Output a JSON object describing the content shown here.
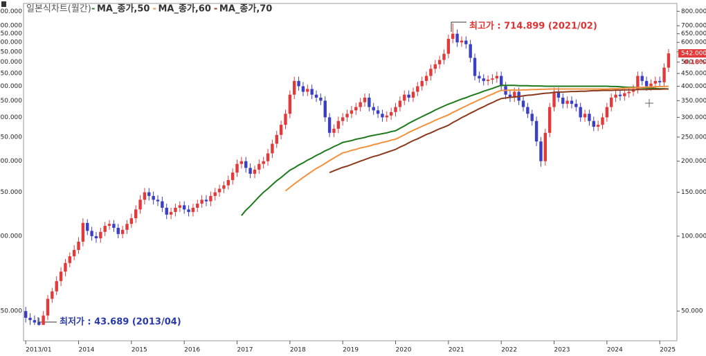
{
  "chart_data": {
    "type": "candlestick",
    "title": "일본식차트(월간)",
    "log_scale": true,
    "ylim": [
      38,
      860
    ],
    "yticks": [
      {
        "value": 800,
        "label": "800.000"
      },
      {
        "value": 700,
        "label": "700.000"
      },
      {
        "value": 650,
        "label": "650.000"
      },
      {
        "value": 600,
        "label": "600.000"
      },
      {
        "value": 550,
        "label": "550.000"
      },
      {
        "value": 500,
        "label": "500.000"
      },
      {
        "value": 450,
        "label": "450.000"
      },
      {
        "value": 400,
        "label": "400.000"
      },
      {
        "value": 350,
        "label": "350.000"
      },
      {
        "value": 300,
        "label": "300.000"
      },
      {
        "value": 250,
        "label": "250.000"
      },
      {
        "value": 200,
        "label": "200.000"
      },
      {
        "value": 150,
        "label": "150.000"
      },
      {
        "value": 100,
        "label": "100.000"
      },
      {
        "value": 50,
        "label": "50.000"
      }
    ],
    "up_color": "#e23a3a",
    "down_color": "#3a3fc4",
    "categories": [
      "2013/01",
      null,
      null,
      null,
      null,
      null,
      null,
      null,
      null,
      null,
      null,
      null,
      "2014",
      null,
      null,
      null,
      null,
      null,
      null,
      null,
      null,
      null,
      null,
      null,
      "2015",
      null,
      null,
      null,
      null,
      null,
      null,
      null,
      null,
      null,
      null,
      null,
      "2016",
      null,
      null,
      null,
      null,
      null,
      null,
      null,
      null,
      null,
      null,
      null,
      "2017",
      null,
      null,
      null,
      null,
      null,
      null,
      null,
      null,
      null,
      null,
      null,
      "2018",
      null,
      null,
      null,
      null,
      null,
      null,
      null,
      null,
      null,
      null,
      null,
      "2019",
      null,
      null,
      null,
      null,
      null,
      null,
      null,
      null,
      null,
      null,
      null,
      "2020",
      null,
      null,
      null,
      null,
      null,
      null,
      null,
      null,
      null,
      null,
      null,
      "2021",
      null,
      null,
      null,
      null,
      null,
      null,
      null,
      null,
      null,
      null,
      null,
      "2022",
      null,
      null,
      null,
      null,
      null,
      null,
      null,
      null,
      null,
      null,
      null,
      "2023",
      null,
      null,
      null,
      null,
      null,
      null,
      null,
      null,
      null,
      null,
      null,
      "2024",
      null,
      null,
      null,
      null,
      null,
      null,
      null,
      null,
      null,
      null,
      null,
      "2025",
      null,
      null
    ],
    "open": [
      50,
      47,
      46,
      45,
      44,
      48,
      56,
      60,
      66,
      72,
      78,
      83,
      88,
      95,
      113,
      105,
      100,
      98,
      104,
      110,
      112,
      108,
      102,
      106,
      112,
      118,
      128,
      140,
      150,
      145,
      140,
      138,
      130,
      122,
      125,
      130,
      133,
      128,
      125,
      130,
      135,
      140,
      138,
      145,
      150,
      155,
      160,
      168,
      180,
      195,
      200,
      188,
      178,
      185,
      195,
      200,
      215,
      235,
      255,
      280,
      310,
      370,
      420,
      400,
      380,
      390,
      370,
      360,
      350,
      300,
      260,
      270,
      290,
      300,
      310,
      320,
      330,
      345,
      360,
      330,
      320,
      310,
      300,
      305,
      315,
      330,
      350,
      370,
      360,
      380,
      400,
      420,
      440,
      470,
      490,
      510,
      540,
      620,
      650,
      600,
      610,
      590,
      520,
      440,
      430,
      420,
      425,
      430,
      440,
      400,
      370,
      360,
      380,
      350,
      330,
      310,
      290,
      240,
      200,
      260,
      330,
      380,
      360,
      340,
      350,
      340,
      330,
      300,
      310,
      290,
      275,
      280,
      300,
      330,
      360,
      370,
      365,
      375,
      380,
      390,
      440,
      420,
      400,
      410,
      420,
      415,
      475
    ],
    "high": [
      52,
      49,
      48,
      47,
      50,
      58,
      62,
      69,
      75,
      81,
      86,
      92,
      99,
      118,
      117,
      109,
      104,
      108,
      114,
      116,
      116,
      112,
      110,
      116,
      123,
      133,
      146,
      156,
      156,
      151,
      146,
      144,
      135,
      130,
      135,
      138,
      138,
      133,
      135,
      140,
      146,
      146,
      151,
      156,
      161,
      166,
      175,
      187,
      203,
      208,
      208,
      196,
      192,
      203,
      208,
      224,
      244,
      265,
      291,
      322,
      385,
      437,
      437,
      416,
      406,
      406,
      385,
      374,
      364,
      312,
      281,
      302,
      312,
      322,
      333,
      343,
      359,
      374,
      374,
      343,
      333,
      322,
      317,
      328,
      343,
      364,
      385,
      385,
      395,
      416,
      437,
      458,
      489,
      510,
      530,
      562,
      645,
      714.899,
      676,
      634,
      634,
      614,
      541,
      458,
      447,
      442,
      447,
      458,
      458,
      416,
      385,
      395,
      395,
      364,
      343,
      322,
      302,
      250,
      270,
      343,
      395,
      395,
      374,
      364,
      364,
      354,
      343,
      322,
      322,
      302,
      291,
      312,
      343,
      374,
      385,
      385,
      390,
      395,
      406,
      458,
      458,
      437,
      426,
      437,
      437,
      494,
      564
    ],
    "low": [
      45,
      44,
      44,
      43.689,
      44,
      46,
      54,
      58,
      63,
      69,
      75,
      80,
      85,
      91,
      101,
      96,
      94,
      94,
      100,
      106,
      104,
      98,
      98,
      102,
      108,
      113,
      123,
      134,
      139,
      134,
      132,
      125,
      117,
      117,
      120,
      125,
      123,
      120,
      120,
      125,
      130,
      132,
      132,
      139,
      144,
      149,
      154,
      161,
      173,
      187,
      180,
      171,
      171,
      178,
      187,
      192,
      206,
      226,
      245,
      269,
      298,
      355,
      384,
      365,
      365,
      355,
      346,
      336,
      288,
      250,
      250,
      259,
      278,
      288,
      298,
      307,
      317,
      331,
      317,
      307,
      298,
      288,
      288,
      293,
      302,
      317,
      336,
      346,
      346,
      365,
      384,
      403,
      422,
      451,
      470,
      490,
      518,
      595,
      576,
      576,
      566,
      499,
      422,
      413,
      403,
      403,
      408,
      413,
      384,
      355,
      346,
      346,
      336,
      317,
      298,
      278,
      230,
      190,
      192,
      250,
      317,
      346,
      326,
      326,
      326,
      317,
      288,
      288,
      278,
      264,
      264,
      269,
      288,
      317,
      346,
      350,
      350,
      360,
      365,
      374,
      403,
      384,
      384,
      394,
      398,
      398,
      456
    ],
    "close": [
      47,
      46,
      45,
      44,
      48,
      56,
      60,
      66,
      72,
      78,
      83,
      88,
      95,
      113,
      105,
      100,
      98,
      104,
      110,
      112,
      108,
      102,
      106,
      112,
      118,
      128,
      140,
      150,
      145,
      140,
      138,
      130,
      122,
      125,
      130,
      133,
      128,
      125,
      130,
      135,
      140,
      138,
      145,
      150,
      155,
      160,
      168,
      180,
      195,
      200,
      188,
      178,
      185,
      195,
      200,
      215,
      235,
      255,
      280,
      310,
      370,
      420,
      400,
      380,
      390,
      370,
      360,
      350,
      300,
      260,
      270,
      290,
      300,
      310,
      320,
      330,
      345,
      360,
      330,
      320,
      310,
      300,
      305,
      315,
      330,
      350,
      370,
      360,
      380,
      400,
      420,
      440,
      470,
      490,
      510,
      540,
      620,
      650,
      600,
      610,
      590,
      520,
      440,
      430,
      420,
      425,
      430,
      440,
      400,
      370,
      360,
      380,
      350,
      330,
      310,
      290,
      240,
      200,
      260,
      330,
      380,
      360,
      340,
      350,
      340,
      330,
      300,
      310,
      290,
      275,
      280,
      300,
      330,
      360,
      370,
      365,
      375,
      380,
      390,
      440,
      420,
      400,
      410,
      420,
      415,
      475,
      542
    ],
    "series": [
      {
        "name": "MA_종가,50",
        "color": "#1c7a1c",
        "values": [
          null,
          null,
          null,
          null,
          null,
          null,
          null,
          null,
          null,
          null,
          null,
          null,
          null,
          null,
          null,
          null,
          null,
          null,
          null,
          null,
          null,
          null,
          null,
          null,
          null,
          null,
          null,
          null,
          null,
          null,
          null,
          null,
          null,
          null,
          null,
          null,
          null,
          null,
          null,
          null,
          null,
          null,
          null,
          null,
          null,
          null,
          null,
          null,
          null,
          121,
          127,
          132,
          138,
          144,
          150,
          155,
          161,
          167,
          172,
          178,
          184,
          188,
          193,
          197,
          202,
          206,
          211,
          215,
          220,
          224,
          229,
          233,
          238,
          240,
          242,
          245,
          247,
          249,
          252,
          254,
          256,
          258,
          260,
          263,
          265,
          271,
          277,
          284,
          290,
          296,
          302,
          308,
          314,
          321,
          327,
          333,
          339,
          344,
          350,
          355,
          360,
          366,
          371,
          376,
          382,
          387,
          392,
          398,
          403,
          403,
          403,
          403,
          402,
          402,
          402,
          401,
          401,
          401,
          400,
          400,
          400,
          400,
          400,
          400,
          400,
          400,
          400,
          400,
          400,
          400,
          400,
          400,
          400,
          399,
          399,
          398,
          397,
          396,
          396,
          395,
          394,
          394,
          393,
          392,
          391,
          391,
          390
        ]
      },
      {
        "name": "MA_종가,60",
        "color": "#f2913d",
        "values": [
          null,
          null,
          null,
          null,
          null,
          null,
          null,
          null,
          null,
          null,
          null,
          null,
          null,
          null,
          null,
          null,
          null,
          null,
          null,
          null,
          null,
          null,
          null,
          null,
          null,
          null,
          null,
          null,
          null,
          null,
          null,
          null,
          null,
          null,
          null,
          null,
          null,
          null,
          null,
          null,
          null,
          null,
          null,
          null,
          null,
          null,
          null,
          null,
          null,
          null,
          null,
          null,
          null,
          null,
          null,
          null,
          null,
          null,
          null,
          152,
          157,
          162,
          167,
          172,
          177,
          182,
          187,
          191,
          196,
          201,
          206,
          211,
          216,
          218,
          221,
          223,
          226,
          228,
          230,
          233,
          235,
          238,
          240,
          243,
          245,
          250,
          255,
          261,
          266,
          271,
          276,
          281,
          286,
          292,
          297,
          302,
          307,
          314,
          320,
          327,
          333,
          340,
          346,
          353,
          359,
          366,
          372,
          379,
          385,
          385,
          386,
          386,
          386,
          387,
          387,
          388,
          388,
          389,
          389,
          390,
          390,
          390,
          390,
          390,
          390,
          390,
          390,
          390,
          390,
          390,
          390,
          390,
          390,
          391,
          391,
          392,
          393,
          394,
          394,
          395,
          396,
          397,
          397,
          398,
          399,
          399,
          400
        ]
      },
      {
        "name": "MA_종가,70",
        "color": "#8a3a1c",
        "values": [
          null,
          null,
          null,
          null,
          null,
          null,
          null,
          null,
          null,
          null,
          null,
          null,
          null,
          null,
          null,
          null,
          null,
          null,
          null,
          null,
          null,
          null,
          null,
          null,
          null,
          null,
          null,
          null,
          null,
          null,
          null,
          null,
          null,
          null,
          null,
          null,
          null,
          null,
          null,
          null,
          null,
          null,
          null,
          null,
          null,
          null,
          null,
          null,
          null,
          null,
          null,
          null,
          null,
          null,
          null,
          null,
          null,
          null,
          null,
          null,
          null,
          null,
          null,
          null,
          null,
          null,
          null,
          null,
          null,
          180,
          183,
          186,
          189,
          191,
          194,
          197,
          200,
          203,
          206,
          209,
          211,
          214,
          217,
          220,
          223,
          228,
          232,
          237,
          242,
          246,
          251,
          256,
          260,
          265,
          270,
          274,
          279,
          286,
          292,
          299,
          305,
          312,
          318,
          325,
          331,
          338,
          344,
          351,
          357,
          359,
          361,
          362,
          364,
          366,
          368,
          369,
          371,
          373,
          375,
          376,
          378,
          379,
          379,
          380,
          381,
          381,
          382,
          382,
          383,
          384,
          384,
          385,
          385,
          385,
          386,
          386,
          387,
          387,
          387,
          388,
          388,
          388,
          389,
          389,
          389,
          390,
          390
        ]
      }
    ],
    "annotations": {
      "high": "최고가 : 714.899 (2021/02)",
      "low": "최저가 : 43.689 (2013/04)"
    },
    "last_price": {
      "value": 542,
      "label": "542.000"
    },
    "change": "0.18%"
  }
}
